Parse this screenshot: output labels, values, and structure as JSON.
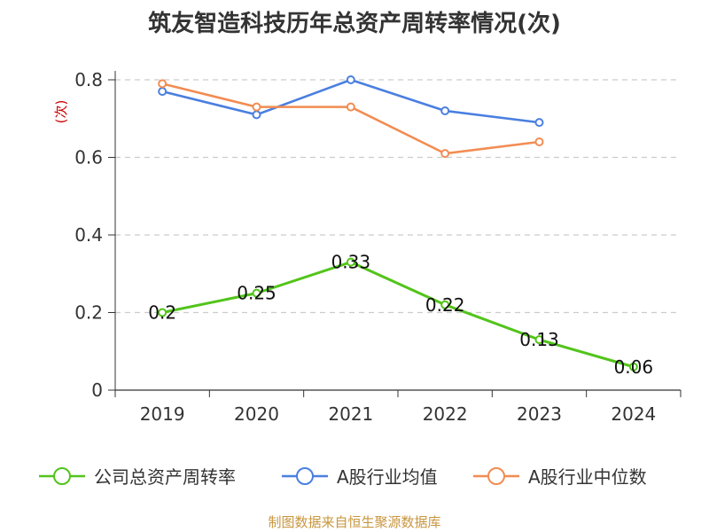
{
  "colors": {
    "title": "#333333",
    "axis": "#333333",
    "grid": "#cccccc",
    "unit_label": "#cc0000",
    "footer": "#c8963e"
  },
  "chart_data": {
    "type": "line",
    "title": "筑友智造科技历年总资产周转率情况(次)",
    "ylabel": "(次)",
    "ylim": [
      0,
      0.8
    ],
    "yticks": [
      0,
      0.2,
      0.4,
      0.6,
      0.8
    ],
    "ytick_labels": [
      "0",
      "0.2",
      "0.4",
      "0.6",
      "0.8"
    ],
    "grid": true,
    "legend_position": "bottom",
    "categories": [
      "2019",
      "2020",
      "2021",
      "2022",
      "2023",
      "2024"
    ],
    "series": [
      {
        "name": "公司总资产周转率",
        "color": "#52c41a",
        "values": [
          0.2,
          0.25,
          0.33,
          0.22,
          0.13,
          0.06
        ],
        "data_labels": [
          "0.2",
          "0.25",
          "0.33",
          "0.22",
          "0.13",
          "0.06"
        ]
      },
      {
        "name": "A股行业均值",
        "color": "#4a7fe0",
        "values": [
          0.77,
          0.71,
          0.8,
          0.72,
          0.69,
          null
        ]
      },
      {
        "name": "A股行业中位数",
        "color": "#f28c52",
        "values": [
          0.79,
          0.73,
          0.73,
          0.61,
          0.64,
          null
        ]
      }
    ]
  },
  "footer": {
    "source": "制图数据来自恒生聚源数据库"
  }
}
